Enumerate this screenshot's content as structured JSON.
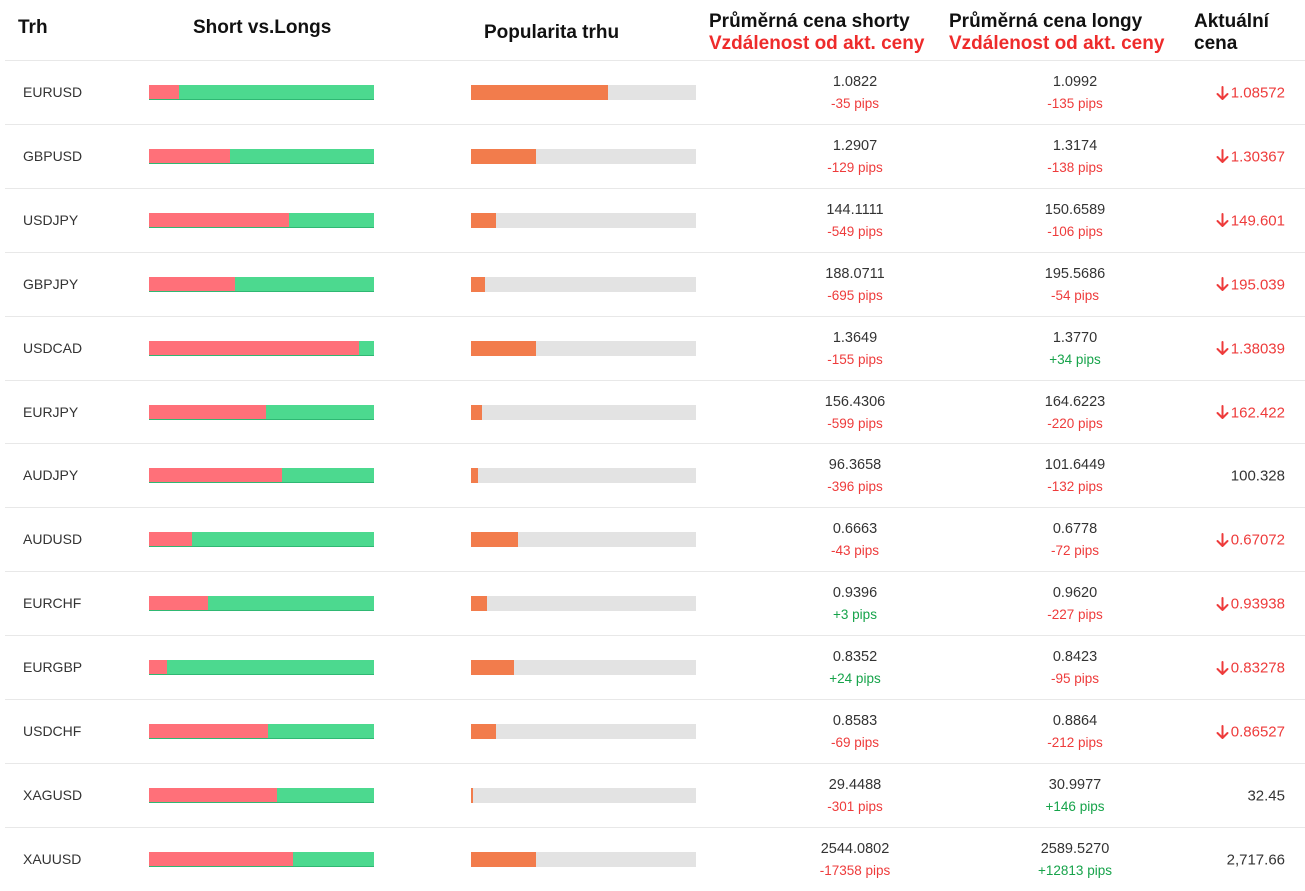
{
  "headers": {
    "market": "Trh",
    "short_vs_longs": "Short vs.Longs",
    "popularity": "Popularita trhu",
    "avg_shorts": "Průměrná cena shorty",
    "avg_shorts_sub": "Vzdálenost od akt. ceny",
    "avg_longs": "Průměrná cena longy",
    "avg_longs_sub": "Vzdálenost od akt. ceny",
    "current_price_1": "Aktuální",
    "current_price_2": "cena"
  },
  "colors": {
    "short": "#ff7079",
    "long": "#4cd98f",
    "popularity": "#f27c4c",
    "negative": "#ee3b3b",
    "positive": "#16a34a"
  },
  "rows": [
    {
      "market": "EURUSD",
      "short_pct": 13.5,
      "popularity_pct": 61,
      "avg_short": "1.0822",
      "short_dist": "-35 pips",
      "avg_long": "1.0992",
      "long_dist": "-135 pips",
      "current": "1.08572",
      "down": true
    },
    {
      "market": "GBPUSD",
      "short_pct": 36,
      "popularity_pct": 29,
      "avg_short": "1.2907",
      "short_dist": "-129 pips",
      "avg_long": "1.3174",
      "long_dist": "-138 pips",
      "current": "1.30367",
      "down": true
    },
    {
      "market": "USDJPY",
      "short_pct": 62,
      "popularity_pct": 11,
      "avg_short": "144.1111",
      "short_dist": "-549 pips",
      "avg_long": "150.6589",
      "long_dist": "-106 pips",
      "current": "149.601",
      "down": true
    },
    {
      "market": "GBPJPY",
      "short_pct": 38,
      "popularity_pct": 6,
      "avg_short": "188.0711",
      "short_dist": "-695 pips",
      "avg_long": "195.5686",
      "long_dist": "-54 pips",
      "current": "195.039",
      "down": true
    },
    {
      "market": "USDCAD",
      "short_pct": 93.5,
      "popularity_pct": 29,
      "avg_short": "1.3649",
      "short_dist": "-155 pips",
      "avg_long": "1.3770",
      "long_dist": "+34 pips",
      "current": "1.38039",
      "down": true
    },
    {
      "market": "EURJPY",
      "short_pct": 52,
      "popularity_pct": 5,
      "avg_short": "156.4306",
      "short_dist": "-599 pips",
      "avg_long": "164.6223",
      "long_dist": "-220 pips",
      "current": "162.422",
      "down": true
    },
    {
      "market": "AUDJPY",
      "short_pct": 59,
      "popularity_pct": 3,
      "avg_short": "96.3658",
      "short_dist": "-396 pips",
      "avg_long": "101.6449",
      "long_dist": "-132 pips",
      "current": "100.328",
      "down": false
    },
    {
      "market": "AUDUSD",
      "short_pct": 19,
      "popularity_pct": 21,
      "avg_short": "0.6663",
      "short_dist": "-43 pips",
      "avg_long": "0.6778",
      "long_dist": "-72 pips",
      "current": "0.67072",
      "down": true
    },
    {
      "market": "EURCHF",
      "short_pct": 26,
      "popularity_pct": 7,
      "avg_short": "0.9396",
      "short_dist": "+3 pips",
      "avg_long": "0.9620",
      "long_dist": "-227 pips",
      "current": "0.93938",
      "down": true
    },
    {
      "market": "EURGBP",
      "short_pct": 8,
      "popularity_pct": 19,
      "avg_short": "0.8352",
      "short_dist": "+24 pips",
      "avg_long": "0.8423",
      "long_dist": "-95 pips",
      "current": "0.83278",
      "down": true
    },
    {
      "market": "USDCHF",
      "short_pct": 53,
      "popularity_pct": 11,
      "avg_short": "0.8583",
      "short_dist": "-69 pips",
      "avg_long": "0.8864",
      "long_dist": "-212 pips",
      "current": "0.86527",
      "down": true
    },
    {
      "market": "XAGUSD",
      "short_pct": 57,
      "popularity_pct": 1,
      "avg_short": "29.4488",
      "short_dist": "-301 pips",
      "avg_long": "30.9977",
      "long_dist": "+146 pips",
      "current": "32.45",
      "down": false
    },
    {
      "market": "XAUUSD",
      "short_pct": 64,
      "popularity_pct": 29,
      "avg_short": "2544.0802",
      "short_dist": "-17358 pips",
      "avg_long": "2589.5270",
      "long_dist": "+12813 pips",
      "current": "2,717.66",
      "down": false
    }
  ]
}
